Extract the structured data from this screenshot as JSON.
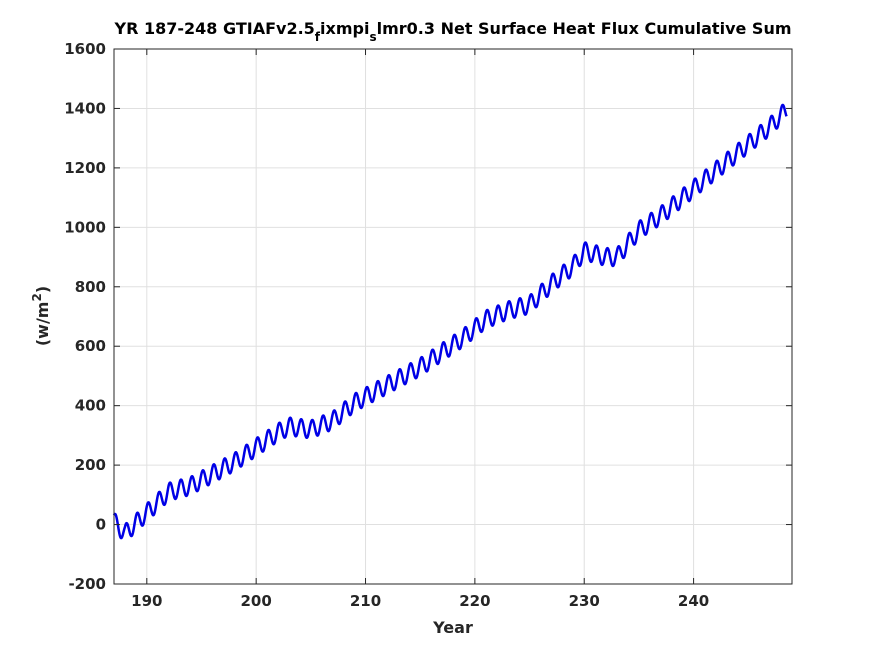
{
  "chart_data": {
    "type": "line",
    "title": {
      "parts": [
        {
          "text": "YR 187-248 GTIAFv2.5",
          "sub": false
        },
        {
          "text": "f",
          "sub": true
        },
        {
          "text": "ixmpi",
          "sub": false
        },
        {
          "text": "s",
          "sub": true
        },
        {
          "text": "lmr0.3 Net Surface Heat Flux  Cumulative Sum",
          "sub": false
        }
      ]
    },
    "xlabel": "Year",
    "ylabel": {
      "base": "(w/m",
      "sup": "2",
      "close": ")"
    },
    "xlim": [
      187,
      249
    ],
    "ylim": [
      -200,
      1600
    ],
    "xticks": [
      190,
      200,
      210,
      220,
      230,
      240
    ],
    "yticks": [
      -200,
      0,
      200,
      400,
      600,
      800,
      1000,
      1200,
      1400,
      1600
    ],
    "grid": true,
    "line_color": "#0000e6",
    "trend": {
      "x": [
        187,
        188,
        190,
        192,
        194,
        196,
        198,
        200,
        202,
        203,
        205,
        207,
        209,
        211,
        213,
        215,
        217,
        219,
        221,
        223,
        225,
        227,
        229,
        230,
        231,
        232,
        233,
        235,
        237,
        239,
        241,
        243,
        245,
        247,
        248.5
      ],
      "y": [
        10,
        -30,
        40,
        110,
        130,
        170,
        210,
        260,
        310,
        330,
        320,
        350,
        410,
        450,
        490,
        530,
        580,
        630,
        690,
        720,
        740,
        810,
        870,
        920,
        910,
        900,
        900,
        990,
        1040,
        1100,
        1160,
        1220,
        1280,
        1340,
        1395
      ]
    },
    "seasonal_amplitude": 30
  }
}
